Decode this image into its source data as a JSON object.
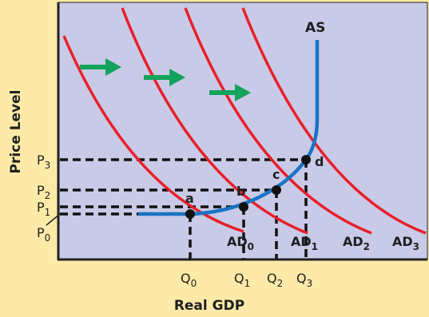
{
  "diagram": {
    "y_axis_label": "Price Level",
    "x_axis_label": "Real GDP",
    "supply_curve_label": "AS",
    "demand_labels": {
      "ad0": {
        "base": "AD",
        "sub": "0"
      },
      "ad1": {
        "base": "AD",
        "sub": "1"
      },
      "ad2": {
        "base": "AD",
        "sub": "2"
      },
      "ad3": {
        "base": "AD",
        "sub": "3"
      }
    },
    "price_labels": {
      "p0": {
        "base": "P",
        "sub": "0"
      },
      "p1": {
        "base": "P",
        "sub": "1"
      },
      "p2": {
        "base": "P",
        "sub": "2"
      },
      "p3": {
        "base": "P",
        "sub": "3"
      }
    },
    "quantity_labels": {
      "q0": {
        "base": "Q",
        "sub": "0"
      },
      "q1": {
        "base": "Q",
        "sub": "1"
      },
      "q2": {
        "base": "Q",
        "sub": "2"
      },
      "q3": {
        "base": "Q",
        "sub": "3"
      }
    },
    "equilibrium_labels": {
      "a": "a",
      "b": "b",
      "c": "c",
      "d": "d"
    },
    "colors": {
      "page_background": "#fdeaa8",
      "plot_background": "#c9cae8",
      "demand_curve": "#e8202a",
      "supply_curve": "#1a74c4",
      "shift_arrow": "#13a35a",
      "guide_lines": "#111111"
    },
    "shift_arrows": [
      "arrow-right-icon",
      "arrow-right-icon",
      "arrow-right-icon"
    ]
  }
}
